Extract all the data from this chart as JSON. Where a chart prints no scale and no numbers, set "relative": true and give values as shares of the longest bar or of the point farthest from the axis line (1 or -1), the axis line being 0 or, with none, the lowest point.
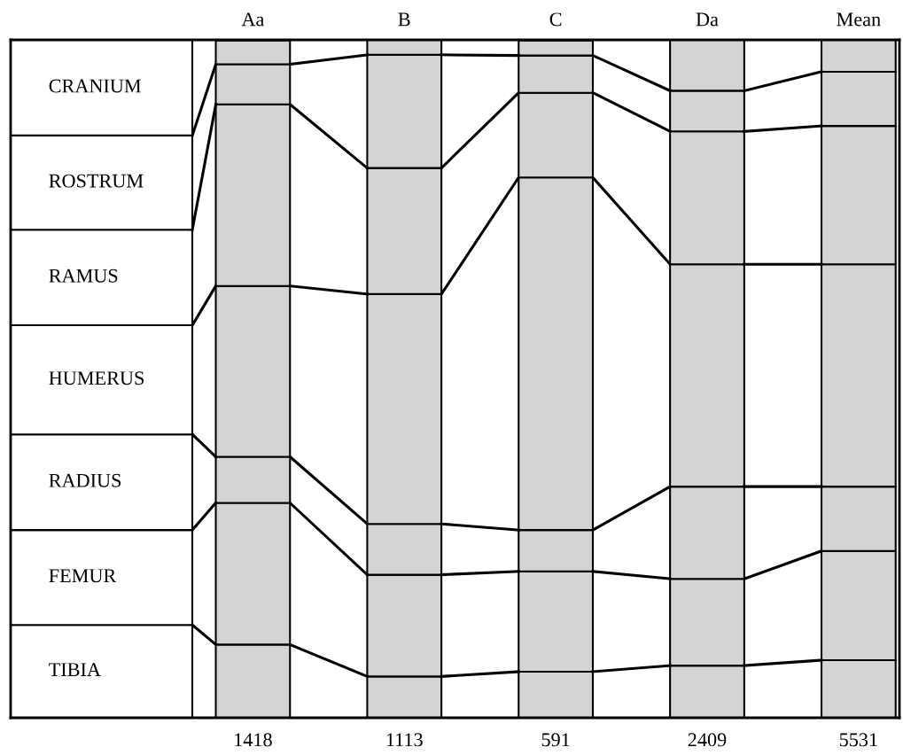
{
  "chart_data": {
    "type": "bar",
    "stacked": true,
    "relative": true,
    "categories": [
      null,
      "Aa",
      "B",
      "C",
      "Da",
      "Mean"
    ],
    "series": [
      {
        "name": "TIBIA",
        "colors": [
          "#ffffff",
          "#d4d4d4",
          "#d4d4d4",
          "#d4d4d4",
          "#d4d4d4",
          "#d4d4d4"
        ],
        "values": [
          0.137,
          0.108,
          0.061,
          0.068,
          0.077,
          0.085
        ]
      },
      {
        "name": "FEMUR",
        "colors": [
          "#ffffff",
          "#d4d4d4",
          "#d4d4d4",
          "#d4d4d4",
          "#d4d4d4",
          "#d4d4d4"
        ],
        "values": [
          0.14,
          0.209,
          0.15,
          0.148,
          0.128,
          0.161
        ]
      },
      {
        "name": "RADIUS",
        "colors": [
          "#ffffff",
          "#d4d4d4",
          "#d4d4d4",
          "#d4d4d4",
          "#d4d4d4",
          "#d4d4d4"
        ],
        "values": [
          0.141,
          0.068,
          0.075,
          0.061,
          0.136,
          0.095
        ]
      },
      {
        "name": "HUMERUS",
        "colors": [
          "#ffffff",
          "#d4d4d4",
          "#d4d4d4",
          "#d4d4d4",
          "#d4d4d4",
          "#d4d4d4"
        ],
        "values": [
          0.161,
          0.252,
          0.339,
          0.52,
          0.328,
          0.328
        ]
      },
      {
        "name": "RAMUS",
        "colors": [
          "#ffffff",
          "#d4d4d4",
          "#d4d4d4",
          "#d4d4d4",
          "#d4d4d4",
          "#d4d4d4"
        ],
        "values": [
          0.141,
          0.268,
          0.186,
          0.125,
          0.196,
          0.204
        ]
      },
      {
        "name": "ROSTRUM",
        "colors": [
          "#ffffff",
          "#d4d4d4",
          "#d4d4d4",
          "#d4d4d4",
          "#d4d4d4",
          "#d4d4d4"
        ],
        "values": [
          0.139,
          0.059,
          0.167,
          0.055,
          0.06,
          0.08
        ]
      },
      {
        "name": "CRANIUM",
        "colors": [
          "#ffffff",
          "#d4d4d4",
          "#d4d4d4",
          "#d4d4d4",
          "#d4d4d4",
          "#d4d4d4"
        ],
        "values": [
          0.141,
          0.035,
          0.022,
          0.022,
          0.075,
          0.047
        ]
      }
    ],
    "annotations": [
      "1418",
      "1113",
      "591",
      "2409",
      "5531"
    ],
    "legend": false
  }
}
